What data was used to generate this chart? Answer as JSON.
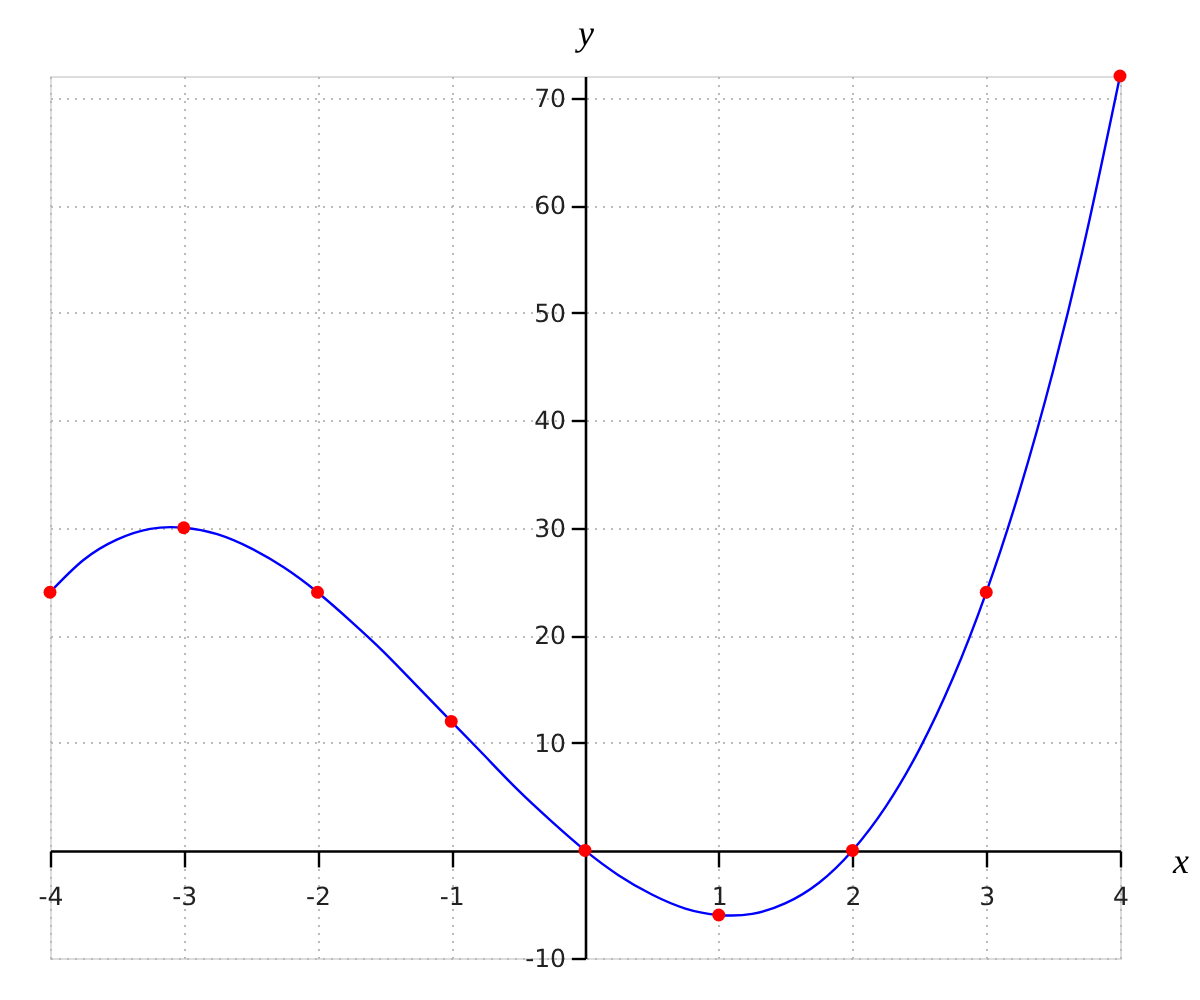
{
  "chart_data": {
    "type": "line",
    "xlabel": "x",
    "ylabel": "y",
    "xlim": [
      -4,
      4
    ],
    "ylim": [
      -10,
      72
    ],
    "xticks": [
      -4,
      -3,
      -2,
      -1,
      1,
      2,
      3,
      4
    ],
    "yticks": [
      -10,
      10,
      20,
      30,
      40,
      50,
      60,
      70
    ],
    "grid": true,
    "series": [
      {
        "color": "#0000ff",
        "x": [
          -4,
          -3.75,
          -3.5,
          -3.25,
          -3,
          -2.75,
          -2.5,
          -2.25,
          -2,
          -1.75,
          -1.5,
          -1.25,
          -1,
          -0.75,
          -0.5,
          -0.25,
          0,
          0.25,
          0.5,
          0.75,
          1,
          1.25,
          1.5,
          1.75,
          2,
          2.25,
          2.5,
          2.75,
          3,
          3.25,
          3.5,
          3.75,
          4
        ],
        "values": [
          24,
          27.0,
          28.9,
          29.9,
          30,
          29.4,
          28.1,
          26.3,
          24,
          21.3,
          18.4,
          15.2,
          12,
          8.8,
          5.6,
          2.7,
          0,
          -2.3,
          -4.1,
          -5.4,
          -6,
          -5.9,
          -4.9,
          -3.0,
          0,
          4.1,
          9.4,
          16.0,
          24,
          33.5,
          44.6,
          57.4,
          72
        ]
      },
      {
        "type": "scatter",
        "color": "#ff0000",
        "marker": "circle",
        "x": [
          -4,
          -3,
          -2,
          -1,
          0,
          1,
          2,
          3,
          4
        ],
        "values": [
          24,
          30,
          24,
          12,
          0,
          -6,
          0,
          24,
          72
        ]
      }
    ]
  }
}
